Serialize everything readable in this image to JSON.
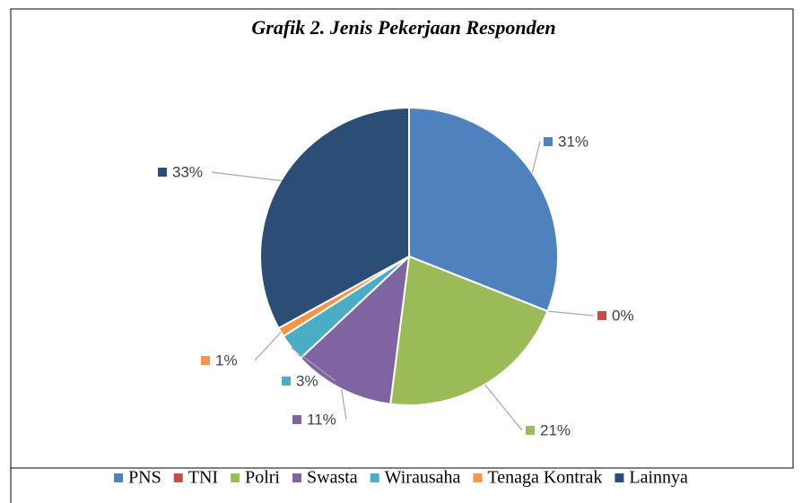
{
  "chart_data": {
    "type": "pie",
    "title": "Grafik 2. Jenis Pekerjaan Responden",
    "categories": [
      "PNS",
      "TNI",
      "Polri",
      "Swasta",
      "Wirausaha",
      "Tenaga Kontrak",
      "Lainnya"
    ],
    "values": [
      31,
      0,
      21,
      11,
      3,
      1,
      33
    ],
    "value_labels": [
      "31%",
      "0%",
      "21%",
      "11%",
      "3%",
      "1%",
      "33%"
    ],
    "colors": [
      "#4f81bd",
      "#c0504d",
      "#9bbb59",
      "#8064a2",
      "#4bacc6",
      "#f79646",
      "#2c4d75"
    ],
    "legend": "bottom"
  }
}
